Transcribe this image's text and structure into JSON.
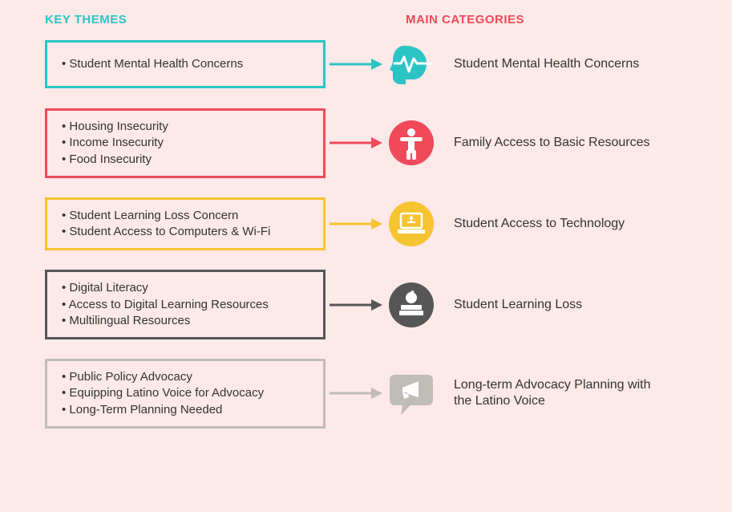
{
  "colors": {
    "background": "#fce9e8",
    "white": "#ffffff",
    "text": "#333333"
  },
  "headers": {
    "left": "KEY THEMES",
    "left_color": "#2bc4c4",
    "right": "MAIN CATEGORIES",
    "right_color": "#f04a5a"
  },
  "rows": [
    {
      "color": "#2bc4c4",
      "icon": "head",
      "icon_bg_shape": "head",
      "themes": [
        "Student Mental Health Concerns"
      ],
      "category": "Student Mental Health Concerns"
    },
    {
      "color": "#f04a5a",
      "icon": "person",
      "icon_bg_shape": "circle",
      "themes": [
        "Housing Insecurity",
        "Income Insecurity",
        "Food Insecurity"
      ],
      "category": "Family Access to Basic Resources"
    },
    {
      "color": "#f7c431",
      "icon": "laptop",
      "icon_bg_shape": "circle",
      "themes": [
        "Student Learning Loss Concern",
        "Student Access to Computers & Wi-Fi"
      ],
      "category": "Student Access to Technology"
    },
    {
      "color": "#565656",
      "icon": "books",
      "icon_bg_shape": "circle",
      "themes": [
        "Digital Literacy",
        "Access to Digital Learning Resources",
        "Multilingual Resources"
      ],
      "category": "Student Learning Loss"
    },
    {
      "color": "#c0bdb9",
      "icon": "megaphone",
      "icon_bg_shape": "speech",
      "themes": [
        "Public Policy Advocacy",
        "Equipping Latino Voice for Advocacy",
        "Long-Term Planning Needed"
      ],
      "category": "Long-term Advocacy Planning with the Latino Voice"
    }
  ]
}
